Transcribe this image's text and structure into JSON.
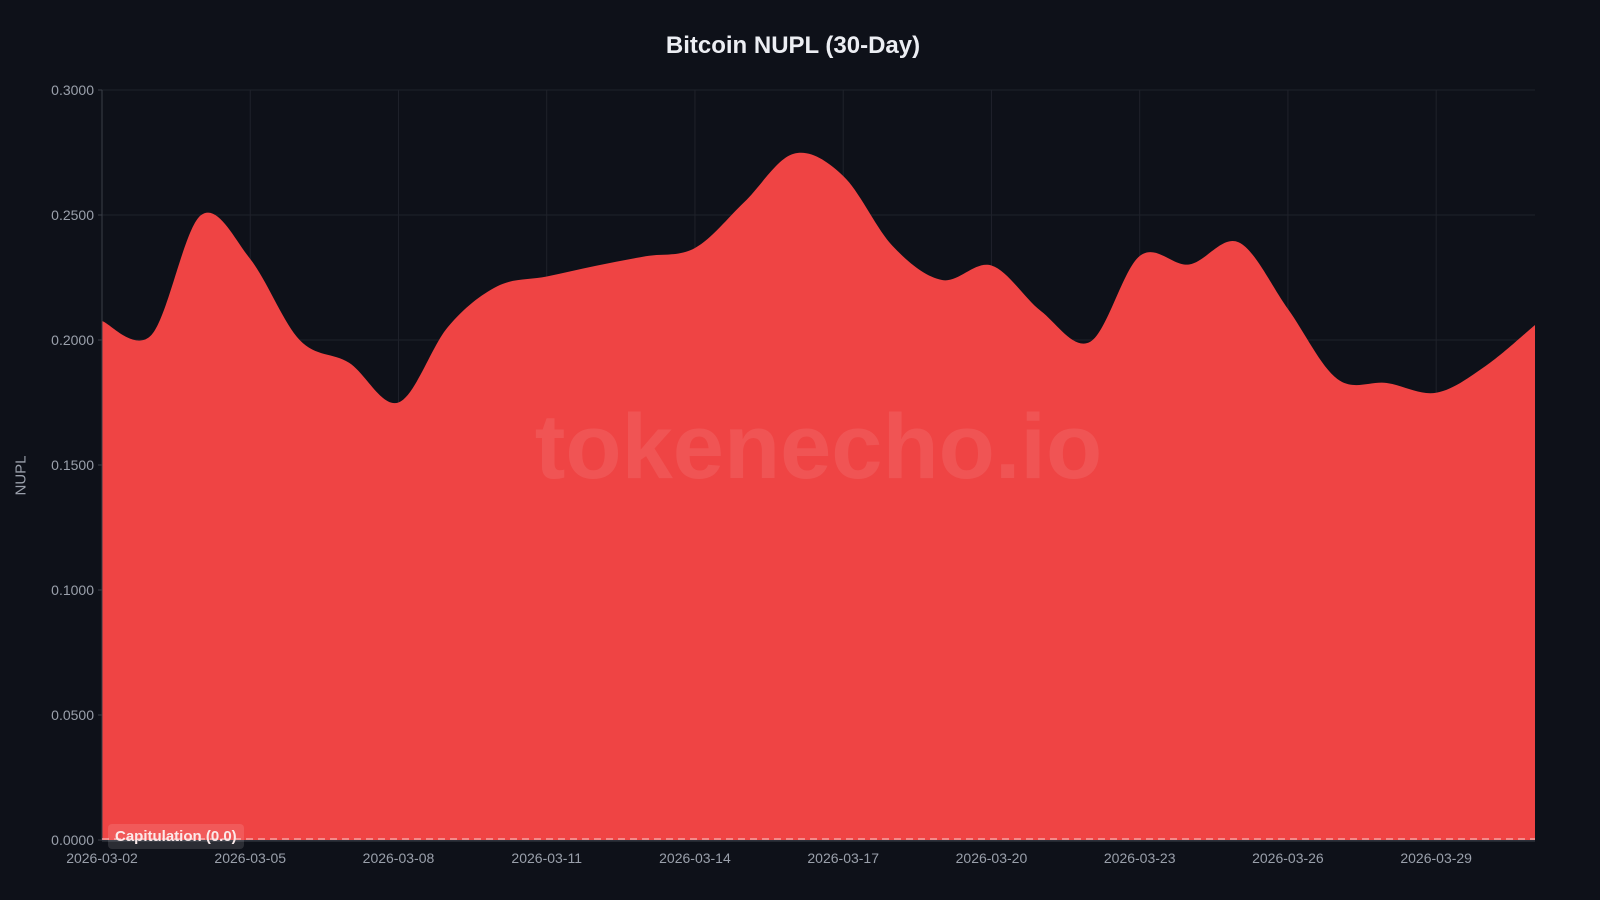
{
  "chart_data": {
    "type": "area",
    "title": "Bitcoin NUPL (30-Day)",
    "xlabel": "",
    "ylabel": "NUPL",
    "ylim": [
      0,
      0.3
    ],
    "yticks": [
      "0.0000",
      "0.0500",
      "0.1000",
      "0.1500",
      "0.2000",
      "0.2500",
      "0.3000"
    ],
    "xticks": [
      "2026-03-02",
      "2026-03-05",
      "2026-03-08",
      "2026-03-11",
      "2026-03-14",
      "2026-03-17",
      "2026-03-20",
      "2026-03-23",
      "2026-03-26",
      "2026-03-29"
    ],
    "grid": true,
    "legend": null,
    "fill_color": "#ef4444",
    "x": [
      "2026-03-02",
      "2026-03-03",
      "2026-03-04",
      "2026-03-05",
      "2026-03-06",
      "2026-03-07",
      "2026-03-08",
      "2026-03-09",
      "2026-03-10",
      "2026-03-11",
      "2026-03-12",
      "2026-03-13",
      "2026-03-14",
      "2026-03-15",
      "2026-03-16",
      "2026-03-17",
      "2026-03-18",
      "2026-03-19",
      "2026-03-20",
      "2026-03-21",
      "2026-03-22",
      "2026-03-23",
      "2026-03-24",
      "2026-03-25",
      "2026-03-26",
      "2026-03-27",
      "2026-03-28",
      "2026-03-29",
      "2026-03-30",
      "2026-03-31"
    ],
    "values": [
      0.2076,
      0.202,
      0.2499,
      0.2324,
      0.2,
      0.1909,
      0.175,
      0.2052,
      0.2215,
      0.2254,
      0.2297,
      0.2335,
      0.2368,
      0.2552,
      0.2745,
      0.2656,
      0.2376,
      0.224,
      0.2298,
      0.2116,
      0.1993,
      0.2336,
      0.2302,
      0.2391,
      0.2124,
      0.1844,
      0.1828,
      0.1789,
      0.1896,
      0.206
    ],
    "annotations": [
      {
        "label": "Capitulation (0.0)",
        "y": 0.0,
        "style": "dashed"
      }
    ],
    "watermark": "tokenecho.io"
  }
}
